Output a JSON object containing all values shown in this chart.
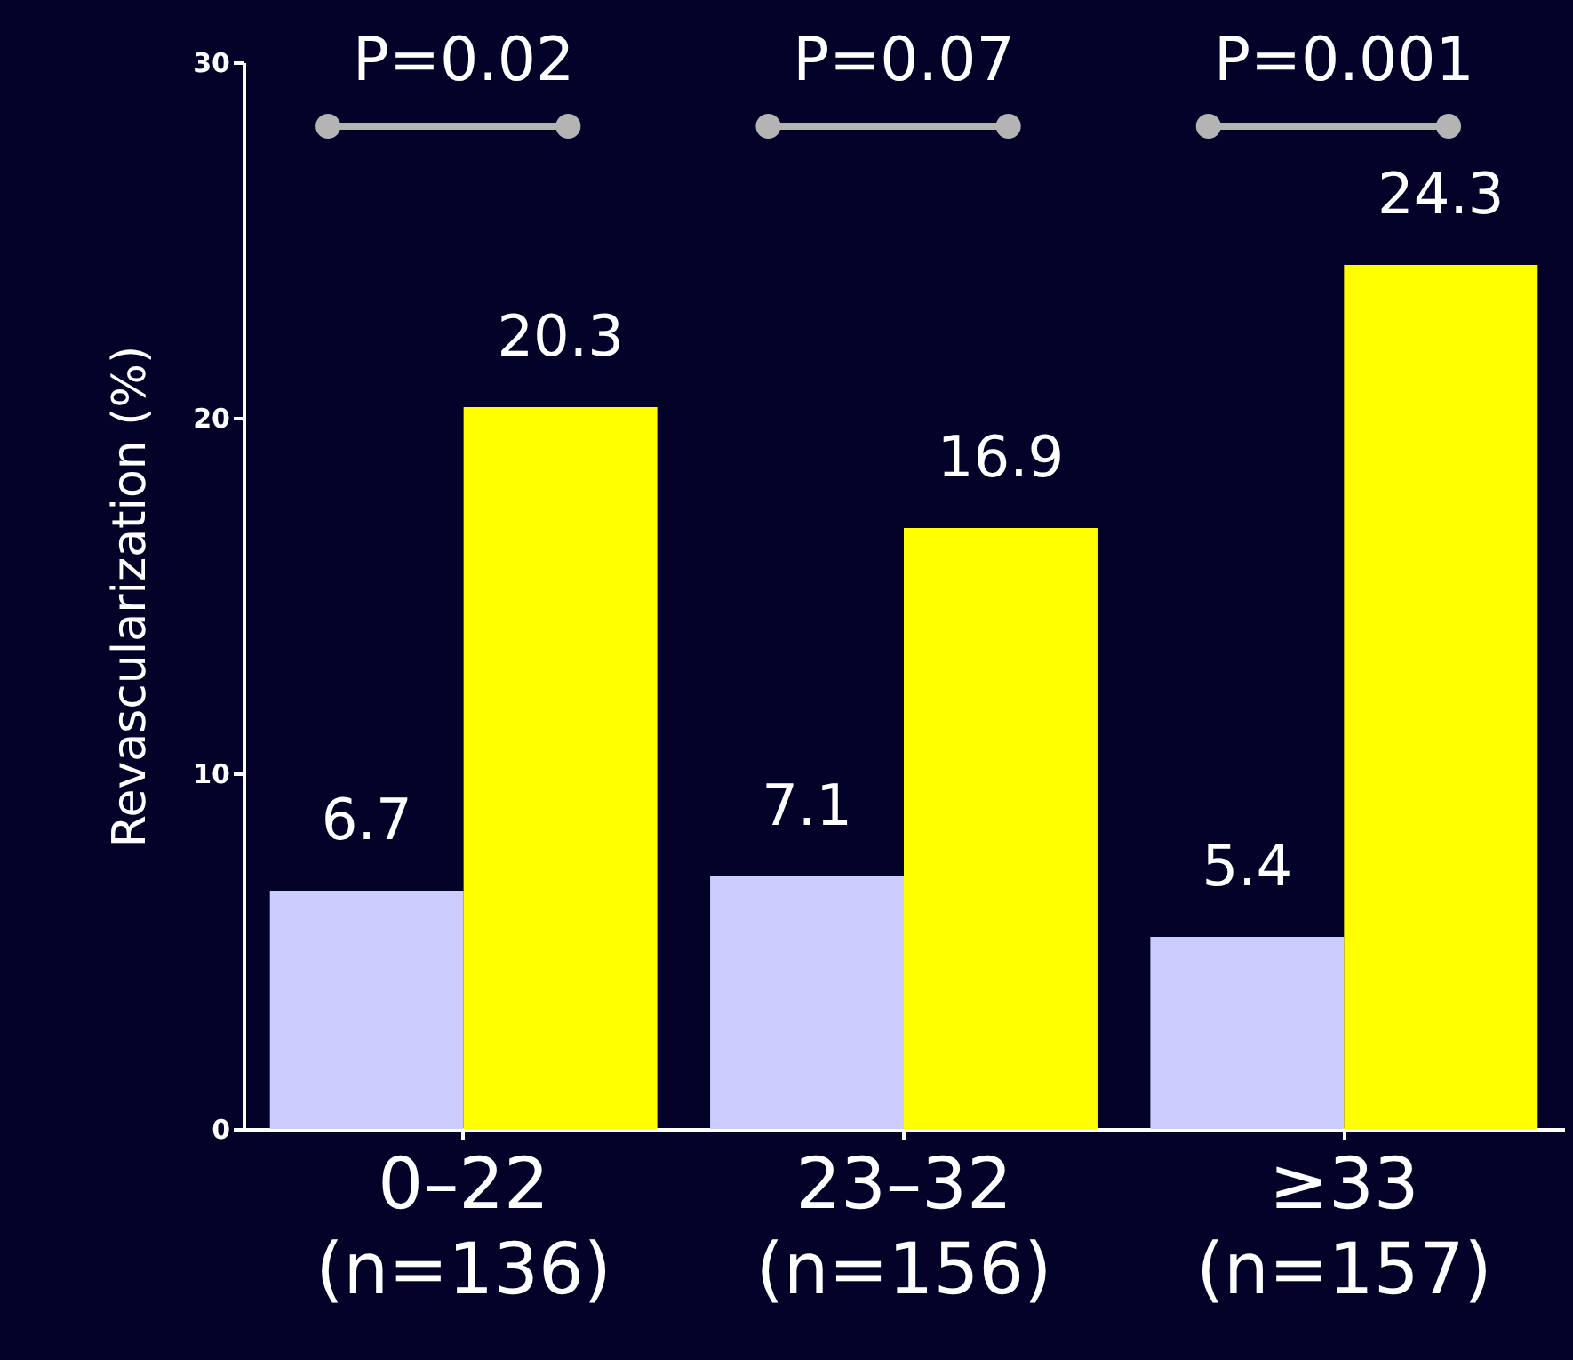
{
  "chart_data": {
    "type": "bar",
    "ylabel": "Revascularization (%)",
    "categories": [
      "0–22 (n=136)",
      "23–32 (n=156)",
      "≥33 (n=157)"
    ],
    "series": [
      {
        "color": "#ccccff",
        "values": [
          6.7,
          7.1,
          5.4
        ]
      },
      {
        "color": "#ffff00",
        "values": [
          20.3,
          16.9,
          24.3
        ]
      }
    ],
    "ylim": [
      0,
      30
    ],
    "yticks": [
      0,
      10,
      20,
      30
    ],
    "grid": false,
    "legend": false,
    "data_labels": true,
    "annotations": [
      "P=0.02",
      "P=0.07",
      "P=0.001"
    ]
  }
}
